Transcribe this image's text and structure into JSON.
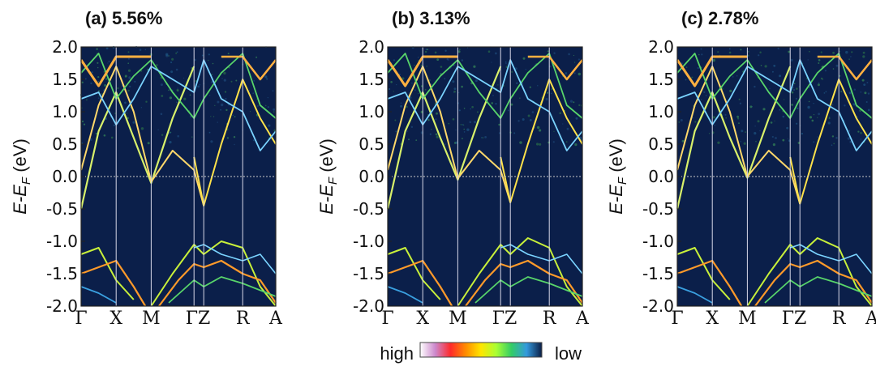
{
  "figure": {
    "colorbar": {
      "high_label": "high",
      "low_label": "low",
      "stops": [
        "#ffffff",
        "#cc88cc",
        "#ff2a2a",
        "#ff8c00",
        "#ffe600",
        "#aaff33",
        "#33cc66",
        "#3399dd",
        "#0b1e45"
      ]
    },
    "background_color": "#0b1f4a"
  },
  "chart_data": [
    {
      "type": "heatmap",
      "title": "(a) 5.56%",
      "ylabel_prefix": "E-E",
      "ylabel_sub": "F",
      "ylabel_suffix": " (eV)",
      "ylim": [
        -2.0,
        2.0
      ],
      "yticks": [
        "2.0",
        "1.5",
        "1.0",
        "0.5",
        "0.0",
        "-0.5",
        "-1.0",
        "-1.5",
        "-2.0"
      ],
      "kpath": [
        "Γ",
        "X",
        "M",
        "Γ",
        "Z",
        "R",
        "A"
      ],
      "kpath_label_text": [
        "Γ",
        "X",
        "M",
        "ΓZ",
        "R",
        "A"
      ],
      "fermi_level": 0.0,
      "band_minimum_at_M": -0.1,
      "band_minimum_at_Z": -0.45,
      "valence_top": -1.0
    },
    {
      "type": "heatmap",
      "title": "(b) 3.13%",
      "ylabel_prefix": "E-E",
      "ylabel_sub": "F",
      "ylabel_suffix": " (eV)",
      "ylim": [
        -2.0,
        2.0
      ],
      "yticks": [
        "2.0",
        "1.5",
        "1.0",
        "0.5",
        "0.0",
        "-0.5",
        "-1.0",
        "-1.5",
        "-2.0"
      ],
      "kpath": [
        "Γ",
        "X",
        "M",
        "Γ",
        "Z",
        "R",
        "A"
      ],
      "kpath_label_text": [
        "Γ",
        "X",
        "M",
        "ΓZ",
        "R",
        "A"
      ],
      "fermi_level": 0.0,
      "band_minimum_at_M": -0.05,
      "band_minimum_at_Z": -0.4,
      "valence_top": -0.95
    },
    {
      "type": "heatmap",
      "title": "(c) 2.78%",
      "ylabel_prefix": "E-E",
      "ylabel_sub": "F",
      "ylabel_suffix": " (eV)",
      "ylim": [
        -2.0,
        2.0
      ],
      "yticks": [
        "2.0",
        "1.5",
        "1.0",
        "0.5",
        "0.0",
        "-0.5",
        "-1.0",
        "-1.5",
        "-2.0"
      ],
      "kpath": [
        "Γ",
        "X",
        "M",
        "Γ",
        "Z",
        "R",
        "A"
      ],
      "kpath_label_text": [
        "Γ",
        "X",
        "M",
        "ΓZ",
        "R",
        "A"
      ],
      "fermi_level": 0.0,
      "band_minimum_at_M": -0.02,
      "band_minimum_at_Z": -0.42,
      "valence_top": -0.95
    }
  ]
}
